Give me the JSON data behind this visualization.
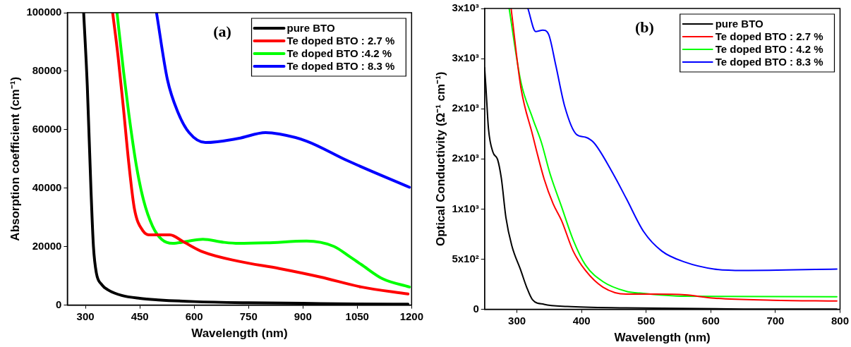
{
  "chart_data": [
    {
      "type": "line",
      "xlabel": "Wavelength (nm)",
      "ylabel": "Absorption coefficient (cm⁻¹)",
      "annotations": [
        "(a)"
      ],
      "xlim": [
        250,
        1200
      ],
      "xticks": [
        300,
        450,
        600,
        750,
        900,
        1050,
        1200
      ],
      "ylim": [
        0,
        100000
      ],
      "yticks": [
        0,
        20000,
        40000,
        60000,
        80000,
        100000
      ],
      "legend": "top right",
      "series": [
        {
          "name": "pure BTO",
          "color": "#000000",
          "x": [
            295,
            305,
            315,
            322,
            330,
            345,
            365,
            400,
            450,
            500,
            600,
            750,
            900,
            1050,
            1190
          ],
          "values": [
            100000,
            75000,
            40000,
            20000,
            11000,
            7000,
            5000,
            3300,
            2300,
            1800,
            1200,
            800,
            600,
            400,
            300
          ]
        },
        {
          "name": "Te doped BTO : 2.7 %",
          "color": "#ff0000",
          "x": [
            375,
            390,
            405,
            420,
            435,
            458,
            481,
            533,
            571,
            624,
            722,
            835,
            948,
            1061,
            1190
          ],
          "values": [
            100000,
            85000,
            67000,
            48000,
            33000,
            25500,
            24000,
            24000,
            21600,
            18200,
            15000,
            12500,
            9600,
            6200,
            3800
          ]
        },
        {
          "name": "Te doped BTO :4.2 %",
          "color": "#00ff00",
          "x": [
            387,
            405,
            420,
            440,
            460,
            485,
            510,
            541,
            580,
            624,
            680,
            722,
            800,
            910,
            985,
            1030,
            1061,
            1120,
            1194
          ],
          "values": [
            100000,
            80000,
            65000,
            48000,
            36000,
            27000,
            22500,
            21100,
            21800,
            22500,
            21500,
            21100,
            21300,
            21900,
            20100,
            16500,
            13900,
            9000,
            6200
          ]
        },
        {
          "name": "Te doped BTO : 8.3 %",
          "color": "#0000ff",
          "x": [
            496,
            526,
            556,
            586,
            631,
            722,
            797,
            835,
            910,
            1023,
            1194
          ],
          "values": [
            100000,
            77200,
            65700,
            59000,
            55600,
            57000,
            59000,
            58500,
            56100,
            49400,
            40300
          ]
        }
      ]
    },
    {
      "type": "line",
      "xlabel": "Wavelength (nm)",
      "ylabel": "Optical Conductivity (Ω⁻¹ cm⁻¹)",
      "annotations": [
        "(b)"
      ],
      "xlim": [
        250,
        800
      ],
      "xticks": [
        300,
        400,
        500,
        600,
        700,
        800
      ],
      "ylim": [
        0,
        3000
      ],
      "yticks": [
        0,
        {
          "value": 500,
          "label": "5x10²"
        },
        {
          "value": 1000,
          "label": "1x10³"
        },
        {
          "value": 1500,
          "label": "2x10³"
        },
        {
          "value": 2000,
          "label": "2x10³"
        },
        {
          "value": 2500,
          "label": "3x10³"
        },
        {
          "value": 3000,
          "label": "3x10³"
        }
      ],
      "legend": "top right",
      "series": [
        {
          "name": "pure BTO",
          "color": "#000000",
          "x": [
            250,
            252,
            256,
            263,
            270,
            276,
            283,
            292,
            306,
            315,
            324,
            342,
            378,
            469,
            650,
            795
          ],
          "values": [
            2410,
            2216,
            1800,
            1565,
            1496,
            1302,
            914,
            637,
            388,
            222,
            97,
            50,
            28,
            14,
            3,
            2
          ]
        },
        {
          "name": "Te doped BTO : 2.7 %",
          "color": "#ff0000",
          "x": [
            291,
            306,
            324,
            342,
            356,
            369,
            387,
            406,
            433,
            469,
            514,
            560,
            605,
            696,
            795
          ],
          "values": [
            3000,
            2216,
            1745,
            1302,
            1053,
            886,
            582,
            388,
            222,
            152,
            152,
            145,
            111,
            91,
            83
          ]
        },
        {
          "name": "Te doped BTO : 4.2 %",
          "color": "#00ff00",
          "x": [
            288,
            306,
            324,
            338,
            351,
            369,
            387,
            406,
            433,
            469,
            490,
            560,
            795
          ],
          "values": [
            3000,
            2271,
            1911,
            1662,
            1357,
            1025,
            693,
            443,
            277,
            180,
            162,
            130,
            125
          ]
        },
        {
          "name": "Te doped BTO : 8.3 %",
          "color": "#0000ff",
          "x": [
            317,
            329,
            340,
            349,
            360,
            374,
            392,
            406,
            419,
            446,
            469,
            496,
            524,
            560,
            605,
            650,
            795
          ],
          "values": [
            3000,
            2770,
            2784,
            2742,
            2437,
            2022,
            1745,
            1717,
            1662,
            1385,
            1108,
            776,
            582,
            471,
            402,
            388,
            402
          ]
        }
      ]
    }
  ]
}
